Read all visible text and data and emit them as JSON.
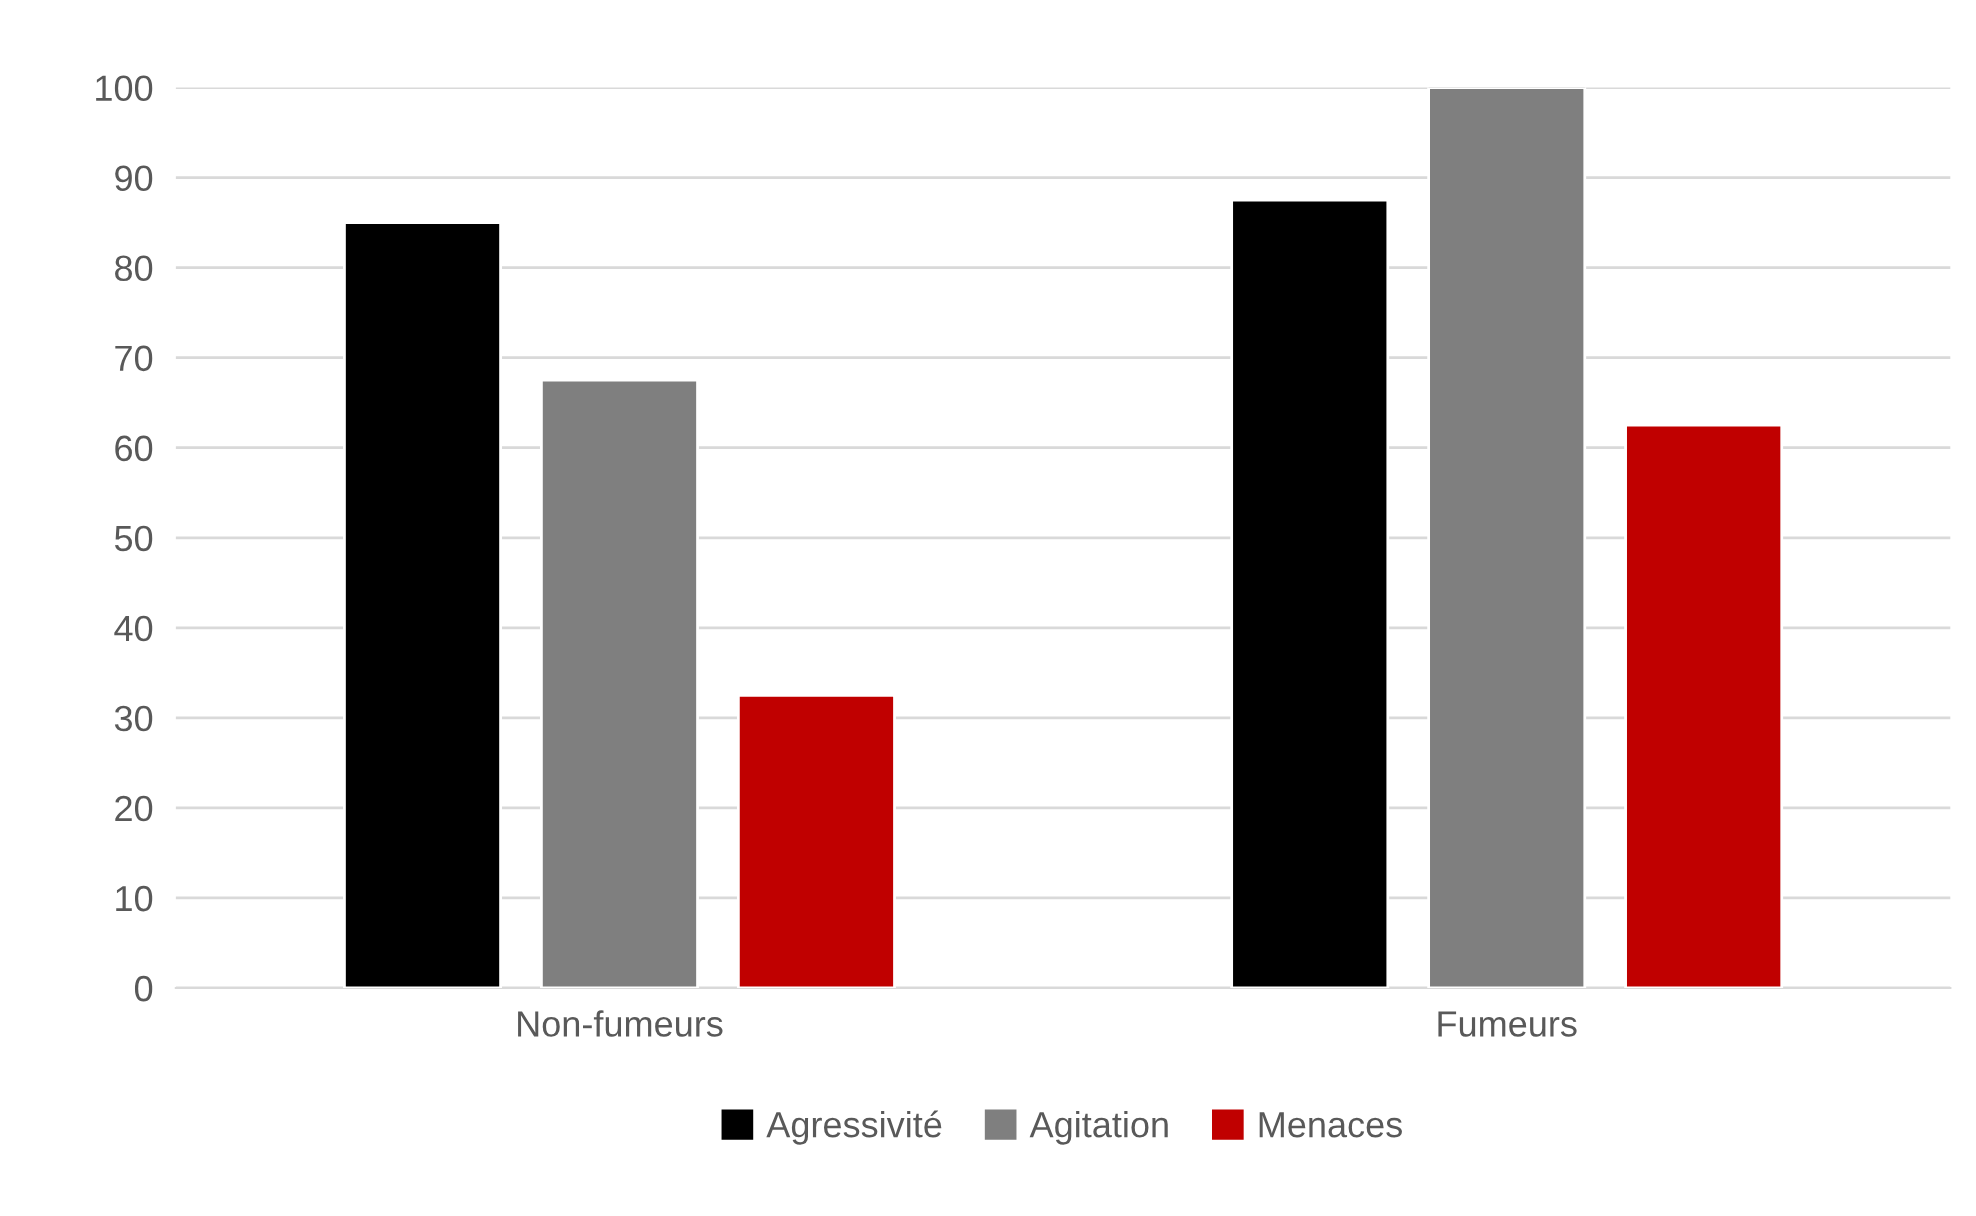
{
  "chart_data": {
    "type": "bar",
    "categories": [
      "Non-fumeurs",
      "Fumeurs"
    ],
    "series": [
      {
        "name": "Agressivité",
        "color": "#000000",
        "values": [
          85,
          87.5
        ]
      },
      {
        "name": "Agitation",
        "color": "#7f7f7f",
        "values": [
          67.5,
          100
        ]
      },
      {
        "name": "Menaces",
        "color": "#c00000",
        "values": [
          32.5,
          62.5
        ]
      }
    ],
    "ylim": [
      0,
      100
    ],
    "yticks": [
      0,
      10,
      20,
      30,
      40,
      50,
      60,
      70,
      80,
      90,
      100
    ],
    "grid": "y",
    "legend": "bottom"
  }
}
